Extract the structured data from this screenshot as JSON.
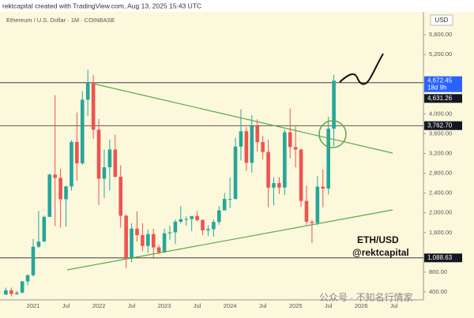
{
  "header": "rektcapital created with TradingView.com, Aug 13, 2025 15:43 UTC",
  "chart_data": {
    "type": "candlestick",
    "title": "Ethereum / U.S. Dollar · 1M · COINBASE",
    "axis_unit": "USD",
    "categories": [
      null,
      null,
      null,
      null,
      null,
      "2021",
      null,
      null,
      null,
      null,
      null,
      "Jul",
      null,
      null,
      null,
      null,
      null,
      "2022",
      null,
      null,
      null,
      null,
      null,
      "Jul",
      null,
      null,
      null,
      null,
      null,
      "2023",
      null,
      null,
      null,
      null,
      null,
      "Jul",
      null,
      null,
      null,
      null,
      null,
      "2024",
      null,
      null,
      null,
      null,
      null,
      "Jul",
      null,
      null,
      null,
      null,
      null,
      "2025",
      null,
      null,
      null,
      null,
      null,
      "Jul",
      null,
      null,
      null,
      null,
      null,
      "2026",
      null,
      null,
      null,
      null,
      null,
      "Jul"
    ],
    "open": [
      346,
      433,
      359,
      386,
      615,
      738,
      1314,
      1417,
      1918,
      2773,
      2707,
      2275,
      2533,
      3433,
      3000,
      4287,
      4630,
      3680,
      2690,
      2920,
      3280,
      2730,
      1940,
      1070,
      1680,
      1550,
      1330,
      1570,
      1300,
      1200,
      1585,
      1605,
      1820,
      1870,
      1875,
      1935,
      1855,
      1645,
      1670,
      1815,
      2050,
      2280,
      2280,
      3340,
      3650,
      3010,
      3760,
      3430,
      3230,
      2510,
      2600,
      2510,
      3630,
      3330,
      3280,
      2240,
      1820,
      1795,
      2530,
      2490,
      3700,
      null,
      null,
      null,
      null,
      null,
      null,
      null,
      null,
      null,
      null,
      null
    ],
    "high": [
      488,
      489,
      420,
      622,
      755,
      1475,
      2036,
      1943,
      2797,
      4380,
      2890,
      2550,
      3470,
      4027,
      4460,
      4890,
      4780,
      3900,
      3280,
      3480,
      3580,
      2960,
      1970,
      1790,
      2030,
      1790,
      1660,
      1680,
      1350,
      1680,
      1740,
      1860,
      2140,
      1930,
      1930,
      2030,
      1870,
      1750,
      1865,
      2135,
      2400,
      2715,
      3520,
      4090,
      3730,
      3975,
      3890,
      3560,
      3480,
      2720,
      2720,
      3680,
      4110,
      3745,
      3300,
      2550,
      1860,
      2740,
      2880,
      3940,
      4790,
      null,
      null,
      null,
      null,
      null,
      null,
      null,
      null,
      null,
      null,
      null
    ],
    "low": [
      343,
      308,
      335,
      372,
      534,
      714,
      1290,
      1433,
      1919,
      1730,
      1700,
      1718,
      2450,
      2650,
      2970,
      3960,
      3500,
      2160,
      2300,
      2450,
      2710,
      1700,
      880,
      1000,
      1420,
      1220,
      1190,
      1070,
      1160,
      1190,
      1460,
      1370,
      1785,
      1740,
      1630,
      1820,
      1550,
      1530,
      1520,
      1760,
      2050,
      2100,
      2270,
      3060,
      2850,
      2810,
      3240,
      3080,
      2110,
      2150,
      2380,
      2360,
      3100,
      2920,
      2120,
      1760,
      1390,
      1750,
      2110,
      2370,
      3350,
      null,
      null,
      null,
      null,
      null,
      null,
      null,
      null,
      null,
      null,
      null
    ],
    "close": [
      433,
      359,
      386,
      615,
      738,
      1314,
      1417,
      1918,
      2773,
      2707,
      2275,
      2533,
      3433,
      3000,
      4287,
      4630,
      3680,
      2690,
      2920,
      3280,
      2730,
      1940,
      1070,
      1680,
      1550,
      1330,
      1570,
      1300,
      1200,
      1585,
      1605,
      1820,
      1870,
      1875,
      1935,
      1855,
      1645,
      1670,
      1815,
      2050,
      2280,
      2280,
      3340,
      3650,
      3010,
      3760,
      3430,
      3230,
      2510,
      2600,
      2510,
      3630,
      3330,
      3280,
      2240,
      1820,
      1795,
      2530,
      2490,
      3700,
      4672.45,
      null,
      null,
      null,
      null,
      null,
      null,
      null,
      null,
      null,
      null,
      null
    ],
    "up_color": "#26a69a",
    "down_color": "#ef5350",
    "ylim": [
      240,
      6064
    ],
    "yticks": [
      {
        "value": 400,
        "label": "400.00"
      },
      {
        "value": 800,
        "label": "800.00"
      },
      {
        "value": 1600,
        "label": "1,600.00"
      },
      {
        "value": 2000,
        "label": "2,000.00"
      },
      {
        "value": 2400,
        "label": "2,400.00"
      },
      {
        "value": 2800,
        "label": "2,800.00"
      },
      {
        "value": 3200,
        "label": "3,200.00"
      },
      {
        "value": 3600,
        "label": "3,600.00"
      },
      {
        "value": 4000,
        "label": "4,000.00"
      },
      {
        "value": 5200,
        "label": "5,200.00"
      },
      {
        "value": 5600,
        "label": "5,600.00"
      }
    ],
    "last_price": {
      "value": 4672.45,
      "label": "4,672.45",
      "countdown": "18d 9h",
      "color": "#2962ff"
    },
    "price_lines": [
      {
        "value": 4631.26,
        "label": "4,631.26"
      },
      {
        "value": 3762.7,
        "label": "3,762.70"
      },
      {
        "value": 1088.63,
        "label": "1,088.63"
      }
    ],
    "annotations": [
      "ETH/USD",
      "@rektcapital"
    ],
    "watermark": "公众号 · 不知名行情家"
  }
}
